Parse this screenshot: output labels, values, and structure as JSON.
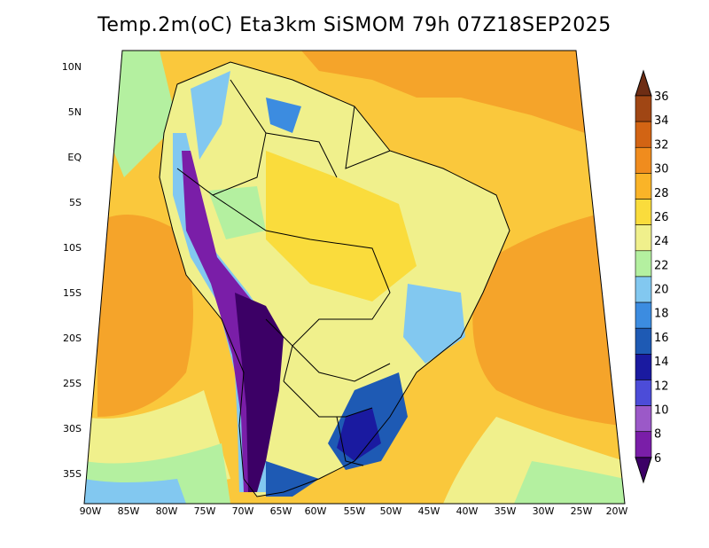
{
  "map": {
    "title": "Temp.2m(oC) Eta3km SiSMOM 79h 07Z18SEP2025",
    "lat_ticks": [
      "10N",
      "5N",
      "EQ",
      "5S",
      "10S",
      "15S",
      "20S",
      "25S",
      "30S",
      "35S"
    ],
    "lon_ticks": [
      "90W",
      "85W",
      "80W",
      "75W",
      "70W",
      "65W",
      "60W",
      "55W",
      "50W",
      "45W",
      "40W",
      "35W",
      "30W",
      "25W",
      "20W"
    ],
    "variable": "2 m temperature",
    "units": "oC"
  },
  "colorbar": {
    "levels": [
      "6",
      "8",
      "10",
      "12",
      "14",
      "16",
      "18",
      "20",
      "22",
      "24",
      "26",
      "28",
      "30",
      "32",
      "34",
      "36"
    ],
    "colors": [
      "#3c0066",
      "#7a1ea8",
      "#9b59c8",
      "#4c4cd8",
      "#1a1aa0",
      "#1e5ab4",
      "#3c8ce0",
      "#82c8f0",
      "#b4f0a0",
      "#f0f08c",
      "#fadc3c",
      "#fab428",
      "#f08c1e",
      "#d26414",
      "#a04614",
      "#6e2d14"
    ]
  }
}
